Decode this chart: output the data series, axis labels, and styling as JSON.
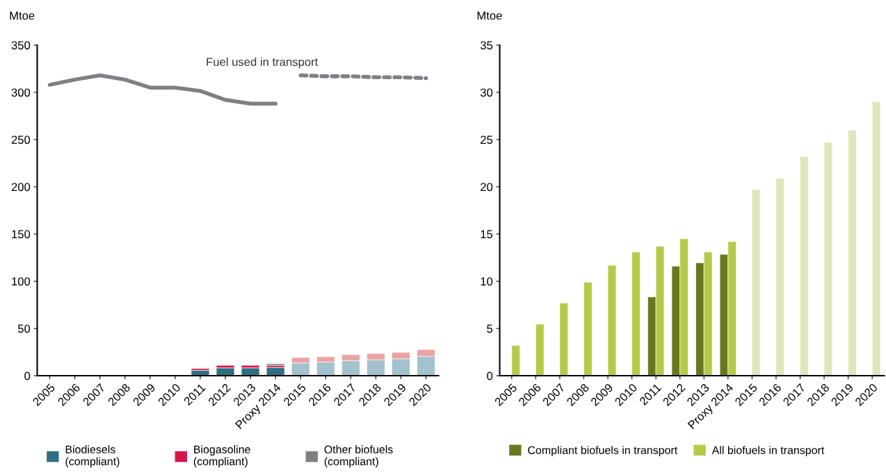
{
  "chart_data": [
    {
      "type": "bar",
      "stacked": true,
      "ylabel": "Mtoe",
      "categories": [
        "2005",
        "2006",
        "2007",
        "2008",
        "2009",
        "2010",
        "2011",
        "2012",
        "2013",
        "Proxy 2014",
        "2015",
        "2016",
        "2017",
        "2018",
        "2019",
        "2020"
      ],
      "ylim": [
        0,
        350
      ],
      "yticks": [
        0,
        50,
        100,
        150,
        200,
        250,
        300,
        350
      ],
      "legend": "bottom",
      "annotations": [
        "Fuel used in transport"
      ],
      "series": [
        {
          "name": "Biodiesels\n(compliant)",
          "color": "#2e6e80",
          "colors": [
            "#2e6e80",
            "#2e6e80",
            "#2e6e80",
            "#2e6e80",
            "#2e6e80",
            "#2e6e80",
            "#2e6e80",
            "#2e6e80",
            "#2e6e80",
            "#2e6e80",
            "#a3c2cd",
            "#a3c2cd",
            "#a3c2cd",
            "#a3c2cd",
            "#a3c2cd",
            "#a3c2cd"
          ],
          "values": [
            null,
            null,
            null,
            null,
            null,
            null,
            5.7,
            8.3,
            8.3,
            8.8,
            13.5,
            14.5,
            16.0,
            16.9,
            17.9,
            20.5
          ]
        },
        {
          "name": "Biogasoline\n(compliant)",
          "color": "#d6164a",
          "colors": [
            "#d6164a",
            "#d6164a",
            "#d6164a",
            "#d6164a",
            "#d6164a",
            "#d6164a",
            "#d6164a",
            "#d6164a",
            "#d6164a",
            "#d6164a",
            "#eaa3a3",
            "#eaa3a3",
            "#eaa3a3",
            "#eaa3a3",
            "#eaa3a3",
            "#eaa3a3"
          ],
          "values": [
            null,
            null,
            null,
            null,
            null,
            null,
            1.9,
            2.7,
            2.7,
            2.2,
            5.8,
            5.6,
            6.3,
            6.6,
            6.9,
            7.2
          ]
        },
        {
          "name": "Other biofuels\n(compliant)",
          "color": "#808084",
          "values": [
            null,
            null,
            null,
            null,
            null,
            null,
            null,
            null,
            null,
            1.7,
            null,
            null,
            null,
            null,
            null,
            null
          ]
        },
        {
          "type": "line",
          "color": "#808084",
          "line_style": "solid",
          "values": [
            308,
            313.5,
            318,
            313.5,
            305,
            305,
            301.5,
            292,
            288,
            288,
            null,
            null,
            null,
            null,
            null,
            null
          ]
        },
        {
          "type": "line",
          "color": "#808084",
          "line_style": "dashed",
          "values": [
            null,
            null,
            null,
            null,
            null,
            null,
            null,
            null,
            null,
            null,
            318,
            317,
            317,
            316,
            316,
            315
          ]
        }
      ]
    },
    {
      "type": "bar",
      "ylabel": "Mtoe",
      "categories": [
        "2005",
        "2006",
        "2007",
        "2008",
        "2009",
        "2010",
        "2011",
        "2012",
        "2013",
        "Proxy 2014",
        "2015",
        "2016",
        "2017",
        "2018",
        "2019",
        "2020"
      ],
      "ylim": [
        0,
        35
      ],
      "yticks": [
        0,
        5,
        10,
        15,
        20,
        25,
        30,
        35
      ],
      "legend": "bottom",
      "series": [
        {
          "name": "Compliant biofuels in transport",
          "color": "#6b7720",
          "values": [
            null,
            null,
            null,
            null,
            null,
            null,
            8.35,
            11.6,
            11.95,
            12.85,
            null,
            null,
            null,
            null,
            null,
            null
          ]
        },
        {
          "name": "All biofuels in transport",
          "color": "#b5ca48",
          "colors": [
            "#b5ca48",
            "#b5ca48",
            "#b5ca48",
            "#b5ca48",
            "#b5ca48",
            "#b5ca48",
            "#b5ca48",
            "#b5ca48",
            "#b5ca48",
            "#b5ca48",
            "#dfe6b8",
            "#dfe6b8",
            "#dfe6b8",
            "#dfe6b8",
            "#dfe6b8",
            "#dfe6b8"
          ],
          "values": [
            3.2,
            5.45,
            7.7,
            9.9,
            11.7,
            13.1,
            13.7,
            14.5,
            13.1,
            14.2,
            19.7,
            20.9,
            23.2,
            24.7,
            26.0,
            29.0
          ]
        }
      ]
    }
  ]
}
